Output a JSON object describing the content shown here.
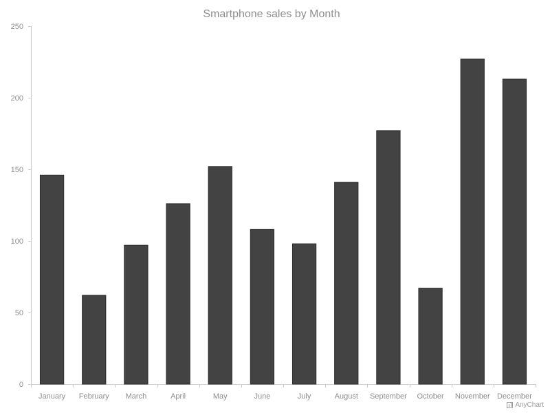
{
  "chart_data": {
    "type": "bar",
    "title": "Smartphone sales by Month",
    "xlabel": "",
    "ylabel": "",
    "categories": [
      "January",
      "February",
      "March",
      "April",
      "May",
      "June",
      "July",
      "August",
      "September",
      "October",
      "November",
      "December"
    ],
    "values": [
      146,
      62,
      97,
      126,
      152,
      108,
      98,
      141,
      177,
      67,
      227,
      213
    ],
    "ylim": [
      0,
      250
    ],
    "yticks": [
      0,
      50,
      100,
      150,
      200,
      250
    ],
    "grid": false,
    "legend": "none",
    "bar_color": "#434343",
    "bar_border_color": "#2a2a2a",
    "text_color": "#8e8e8e",
    "axis_color": "#cccccc"
  },
  "credits": {
    "label": "AnyChart",
    "icon": "chart-icon"
  }
}
